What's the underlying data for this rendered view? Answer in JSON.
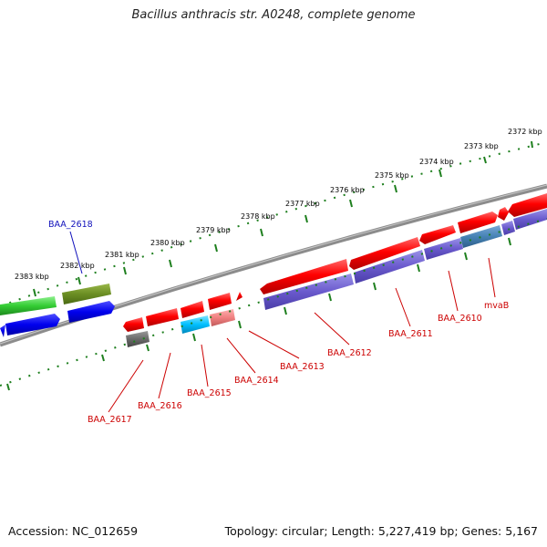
{
  "title": "Bacillus anthracis str. A0248, complete genome",
  "footer": {
    "accession": "Accession: NC_012659",
    "summary": "Topology: circular; Length: 5,227,419 bp; Genes: 5,167"
  },
  "colors": {
    "backbone": "#8c8c8c",
    "tick_outer": "#1e7f1e",
    "tick_inner": "#1e7f1e",
    "label_red": "#cc0000",
    "label_blue": "#1010bb"
  },
  "ticks": [
    "2372 kbp",
    "2373 kbp",
    "2374 kbp",
    "2375 kbp",
    "2376 kbp",
    "2377 kbp",
    "2378 kbp",
    "2379 kbp",
    "2380 kbp",
    "2381 kbp",
    "2382 kbp",
    "2383 kbp"
  ],
  "gene_labels": [
    {
      "id": "baa2618",
      "text": "BAA_2618",
      "color": "#1010bb"
    },
    {
      "id": "mvab",
      "text": "mvaB",
      "color": "#cc0000"
    },
    {
      "id": "baa2610",
      "text": "BAA_2610",
      "color": "#cc0000"
    },
    {
      "id": "baa2611",
      "text": "BAA_2611",
      "color": "#cc0000"
    },
    {
      "id": "baa2612",
      "text": "BAA_2612",
      "color": "#cc0000"
    },
    {
      "id": "baa2613",
      "text": "BAA_2613",
      "color": "#cc0000"
    },
    {
      "id": "baa2614",
      "text": "BAA_2614",
      "color": "#cc0000"
    },
    {
      "id": "baa2615",
      "text": "BAA_2615",
      "color": "#cc0000"
    },
    {
      "id": "baa2616",
      "text": "BAA_2616",
      "color": "#cc0000"
    },
    {
      "id": "baa2617",
      "text": "BAA_2617",
      "color": "#cc0000"
    }
  ]
}
